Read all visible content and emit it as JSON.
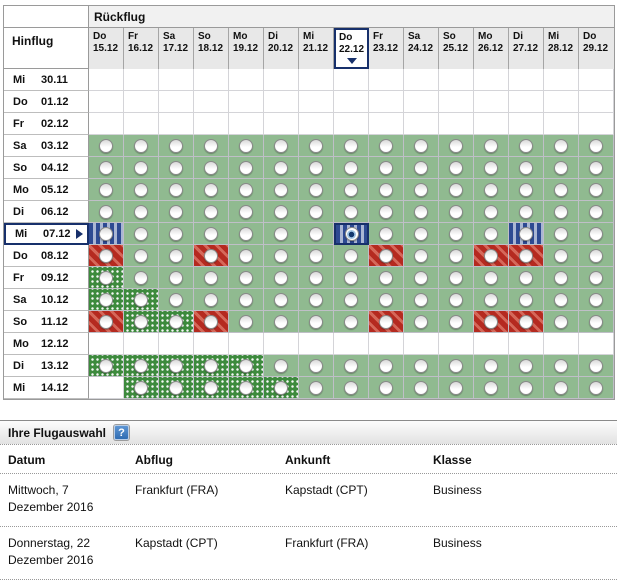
{
  "matrix": {
    "return_header": "Rückflug",
    "outbound_header": "Hinflug",
    "columns": [
      {
        "day": "Do",
        "date": "15.12"
      },
      {
        "day": "Fr",
        "date": "16.12"
      },
      {
        "day": "Sa",
        "date": "17.12"
      },
      {
        "day": "So",
        "date": "18.12"
      },
      {
        "day": "Mo",
        "date": "19.12"
      },
      {
        "day": "Di",
        "date": "20.12"
      },
      {
        "day": "Mi",
        "date": "21.12"
      },
      {
        "day": "Do",
        "date": "22.12"
      },
      {
        "day": "Fr",
        "date": "23.12"
      },
      {
        "day": "Sa",
        "date": "24.12"
      },
      {
        "day": "So",
        "date": "25.12"
      },
      {
        "day": "Mo",
        "date": "26.12"
      },
      {
        "day": "Di",
        "date": "27.12"
      },
      {
        "day": "Mi",
        "date": "28.12"
      },
      {
        "day": "Do",
        "date": "29.12"
      }
    ],
    "selected_column_index": 7,
    "selected_row_index": 7,
    "cell_legend": {
      "-": "no-flight",
      "g": "available-green",
      "d": "available-green-dotted",
      "r": "available-red-striped",
      "b": "available-blue-striped",
      "B": "selected-blue-striped"
    },
    "rows": [
      {
        "day": "Mi",
        "date": "30.11",
        "cells": "---------------"
      },
      {
        "day": "Do",
        "date": "01.12",
        "cells": "---------------"
      },
      {
        "day": "Fr",
        "date": "02.12",
        "cells": "---------------"
      },
      {
        "day": "Sa",
        "date": "03.12",
        "cells": "ggggggggggggggg"
      },
      {
        "day": "So",
        "date": "04.12",
        "cells": "ggggggggggggggg"
      },
      {
        "day": "Mo",
        "date": "05.12",
        "cells": "ggggggggggggggg"
      },
      {
        "day": "Di",
        "date": "06.12",
        "cells": "ggggggggggggggg"
      },
      {
        "day": "Mi",
        "date": "07.12",
        "cells": "bggggggBggggbgg"
      },
      {
        "day": "Do",
        "date": "08.12",
        "cells": "rggrggggrggrrgg"
      },
      {
        "day": "Fr",
        "date": "09.12",
        "cells": "dgggggggggggggg"
      },
      {
        "day": "Sa",
        "date": "10.12",
        "cells": "ddggggggggggggg"
      },
      {
        "day": "So",
        "date": "11.12",
        "cells": "rddrggggrggrrgg"
      },
      {
        "day": "Mo",
        "date": "12.12",
        "cells": "---------------"
      },
      {
        "day": "Di",
        "date": "13.12",
        "cells": "dddddgggggggggg"
      },
      {
        "day": "Mi",
        "date": "14.12",
        "cells": "-dddddggggggggg"
      }
    ],
    "colors": {
      "available_green": "#90ba90",
      "dotted_green": "#3d8a3d",
      "red_stripe_dark": "#b52a20",
      "red_stripe_light": "#d5685a",
      "blue_stripe_dark": "#2d4a92",
      "blue_stripe_light": "#a9b6d4",
      "selection_navy": "#17306b"
    }
  },
  "selection_panel": {
    "title": "Ihre Flugauswahl",
    "help_icon": "?",
    "columns": [
      "Datum",
      "Abflug",
      "Ankunft",
      "Klasse"
    ],
    "flights": [
      {
        "datum": "Mittwoch, 7 Dezember 2016",
        "abflug": "Frankfurt (FRA)",
        "ankunft": "Kapstadt (CPT)",
        "klasse": "Business"
      },
      {
        "datum": "Donnerstag, 22 Dezember 2016",
        "abflug": "Kapstadt (CPT)",
        "ankunft": "Frankfurt (FRA)",
        "klasse": "Business"
      }
    ]
  }
}
